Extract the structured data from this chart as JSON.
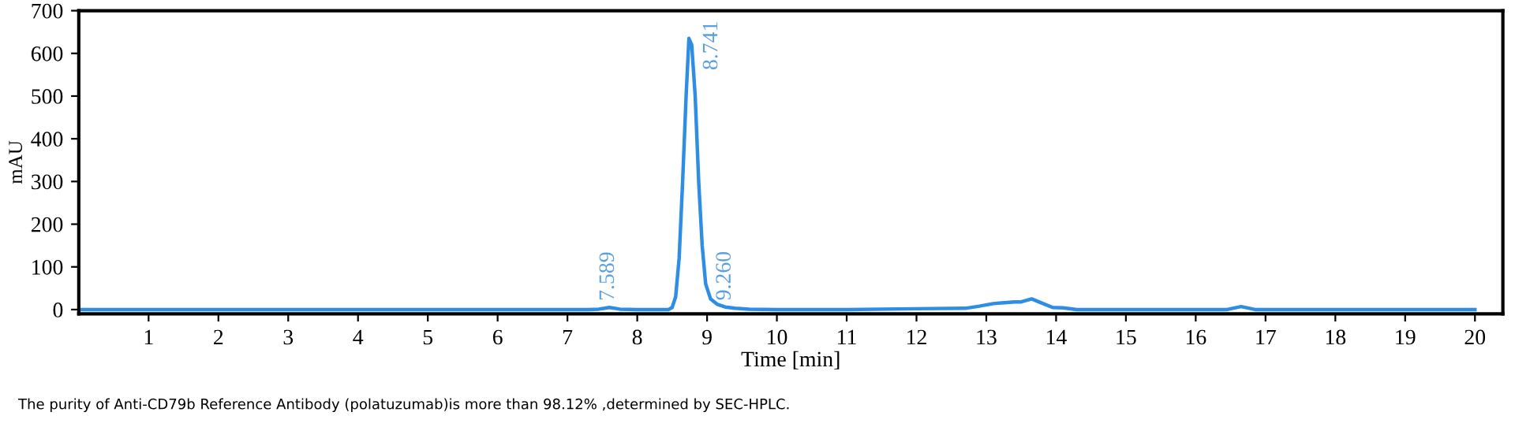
{
  "chart_data": {
    "type": "line",
    "xlabel": "Time [min]",
    "ylabel": "mAU",
    "x": [
      0,
      1,
      2,
      3,
      4,
      5,
      6,
      7,
      7.3,
      7.45,
      7.6,
      7.75,
      8.0,
      8.45,
      8.5,
      8.55,
      8.6,
      8.65,
      8.7,
      8.74,
      8.78,
      8.83,
      8.88,
      8.93,
      8.98,
      9.05,
      9.15,
      9.26,
      9.4,
      9.6,
      10,
      11,
      12,
      12.7,
      12.9,
      13.1,
      13.4,
      13.5,
      13.65,
      13.8,
      13.95,
      14.1,
      14.3,
      15,
      16,
      16.45,
      16.65,
      16.85,
      17,
      18,
      19,
      20
    ],
    "series": [
      {
        "color": "#2f8de4",
        "values": [
          0,
          0,
          0,
          0,
          0,
          0,
          0,
          0,
          0,
          1,
          5,
          1,
          0,
          0,
          5,
          30,
          120,
          300,
          500,
          635,
          620,
          500,
          300,
          150,
          60,
          25,
          12,
          6,
          3,
          1,
          0,
          0,
          2,
          3,
          8,
          14,
          18,
          18,
          25,
          15,
          5,
          4,
          0,
          0,
          0,
          0,
          7,
          0,
          0,
          0,
          0,
          0
        ]
      }
    ],
    "xlim": [
      0,
      20.4
    ],
    "ylim": [
      -10,
      700
    ],
    "xticks": [
      1,
      2,
      3,
      4,
      5,
      6,
      7,
      8,
      9,
      10,
      11,
      12,
      13,
      14,
      15,
      16,
      17,
      18,
      19,
      20
    ],
    "yticks": [
      0,
      100,
      200,
      300,
      400,
      500,
      600,
      700
    ],
    "grid": false,
    "legend": false,
    "marker": "none",
    "line_style": "solid",
    "annotations": [
      {
        "text": "7.589",
        "x": 7.589,
        "y": 5
      },
      {
        "text": "8.741",
        "x": 8.741,
        "y": 635
      },
      {
        "text": "9.260",
        "x": 9.26,
        "y": 6
      },
      "The purity of Anti-CD79b Reference Antibody (polatuzumab)is more than 98.12% ,determined by SEC-HPLC."
    ]
  }
}
